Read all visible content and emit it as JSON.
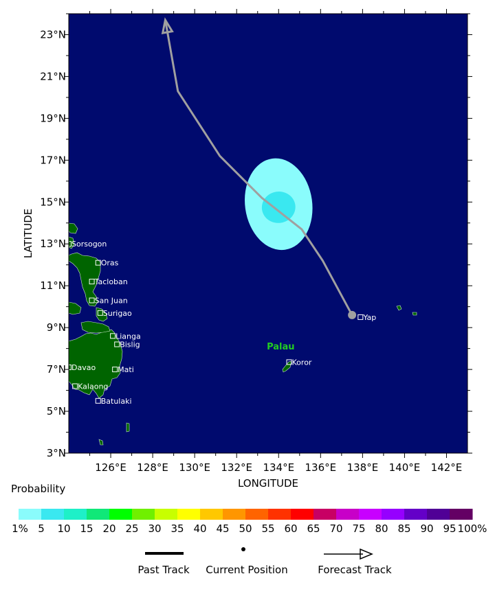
{
  "map": {
    "lon_range": [
      124,
      143
    ],
    "lat_range": [
      3,
      24
    ],
    "x_ticks": [
      {
        "value": 126,
        "label": "126°E"
      },
      {
        "value": 128,
        "label": "128°E"
      },
      {
        "value": 130,
        "label": "130°E"
      },
      {
        "value": 132,
        "label": "132°E"
      },
      {
        "value": 134,
        "label": "134°E"
      },
      {
        "value": 136,
        "label": "136°E"
      },
      {
        "value": 138,
        "label": "138°E"
      },
      {
        "value": 140,
        "label": "140°E"
      },
      {
        "value": 142,
        "label": "142°E"
      }
    ],
    "y_ticks": [
      {
        "value": 3,
        "label": "3°N"
      },
      {
        "value": 5,
        "label": "5°N"
      },
      {
        "value": 7,
        "label": "7°N"
      },
      {
        "value": 9,
        "label": "9°N"
      },
      {
        "value": 11,
        "label": "11°N"
      },
      {
        "value": 13,
        "label": "13°N"
      },
      {
        "value": 15,
        "label": "15°N"
      },
      {
        "value": 17,
        "label": "17°N"
      },
      {
        "value": 19,
        "label": "19°N"
      },
      {
        "value": 21,
        "label": "21°N"
      },
      {
        "value": 23,
        "label": "23°N"
      }
    ],
    "xlabel": "LONGITUDE",
    "ylabel": "LATITUDE",
    "colors": {
      "ocean": "#000a6e",
      "land": "#006400",
      "track": "#a0a0a0",
      "prob_low": "#8afcfc",
      "prob_high": "#3ae8f0",
      "region_label": "#22cc22"
    },
    "cities": [
      {
        "name": "Sorsogon",
        "lon": 124.0,
        "lat": 13.0
      },
      {
        "name": "Oras",
        "lon": 125.4,
        "lat": 12.1
      },
      {
        "name": "Tacloban",
        "lon": 125.1,
        "lat": 11.2
      },
      {
        "name": "San Juan",
        "lon": 125.1,
        "lat": 10.3
      },
      {
        "name": "Surigao",
        "lon": 125.5,
        "lat": 9.7
      },
      {
        "name": "Lianga",
        "lon": 126.1,
        "lat": 8.6
      },
      {
        "name": "Bislig",
        "lon": 126.3,
        "lat": 8.2
      },
      {
        "name": "Davao",
        "lon": 124.0,
        "lat": 7.1
      },
      {
        "name": "Mati",
        "lon": 126.2,
        "lat": 7.0
      },
      {
        "name": "Kalaong",
        "lon": 124.3,
        "lat": 6.2
      },
      {
        "name": "Batulaki",
        "lon": 125.4,
        "lat": 5.5
      },
      {
        "name": "Koror",
        "lon": 134.5,
        "lat": 7.35
      },
      {
        "name": "Yap",
        "lon": 137.9,
        "lat": 9.5
      }
    ],
    "region_labels": [
      {
        "name": "Palau",
        "lon": 134.1,
        "lat": 7.95
      }
    ],
    "forecast_track": [
      {
        "lon": 137.5,
        "lat": 9.6
      },
      {
        "lon": 136.1,
        "lat": 12.2
      },
      {
        "lon": 135.1,
        "lat": 13.7
      },
      {
        "lon": 133.2,
        "lat": 15.2
      },
      {
        "lon": 131.2,
        "lat": 17.2
      },
      {
        "lon": 129.2,
        "lat": 20.3
      },
      {
        "lon": 128.6,
        "lat": 23.7
      }
    ],
    "current_position": {
      "lon": 137.5,
      "lat": 9.6
    },
    "probability_areas": [
      {
        "level": "1%",
        "center_lon": 134.0,
        "center_lat": 14.9,
        "radius_lon": 1.6,
        "radius_lat": 2.2
      },
      {
        "level": "5",
        "center_lon": 134.0,
        "center_lat": 14.75,
        "radius_lon": 0.8,
        "radius_lat": 0.75
      }
    ]
  },
  "legend": {
    "title": "Probability",
    "scale_labels": [
      "1%",
      "5",
      "10",
      "15",
      "20",
      "25",
      "30",
      "35",
      "40",
      "45",
      "50",
      "55",
      "60",
      "65",
      "70",
      "75",
      "80",
      "85",
      "90",
      "95",
      "100%"
    ],
    "colors": [
      "#8afcfc",
      "#3ae8f0",
      "#1ef0c8",
      "#10e878",
      "#00ff00",
      "#70f000",
      "#c8ff00",
      "#ffff00",
      "#ffc800",
      "#ff9600",
      "#ff6400",
      "#ff3200",
      "#ff0000",
      "#c80064",
      "#c800c8",
      "#c800ff",
      "#9600ff",
      "#6400c8",
      "#500096",
      "#640064"
    ],
    "track_legend": {
      "past_track": "Past Track",
      "current_position": "Current Position",
      "forecast_track": "Forecast Track"
    }
  }
}
